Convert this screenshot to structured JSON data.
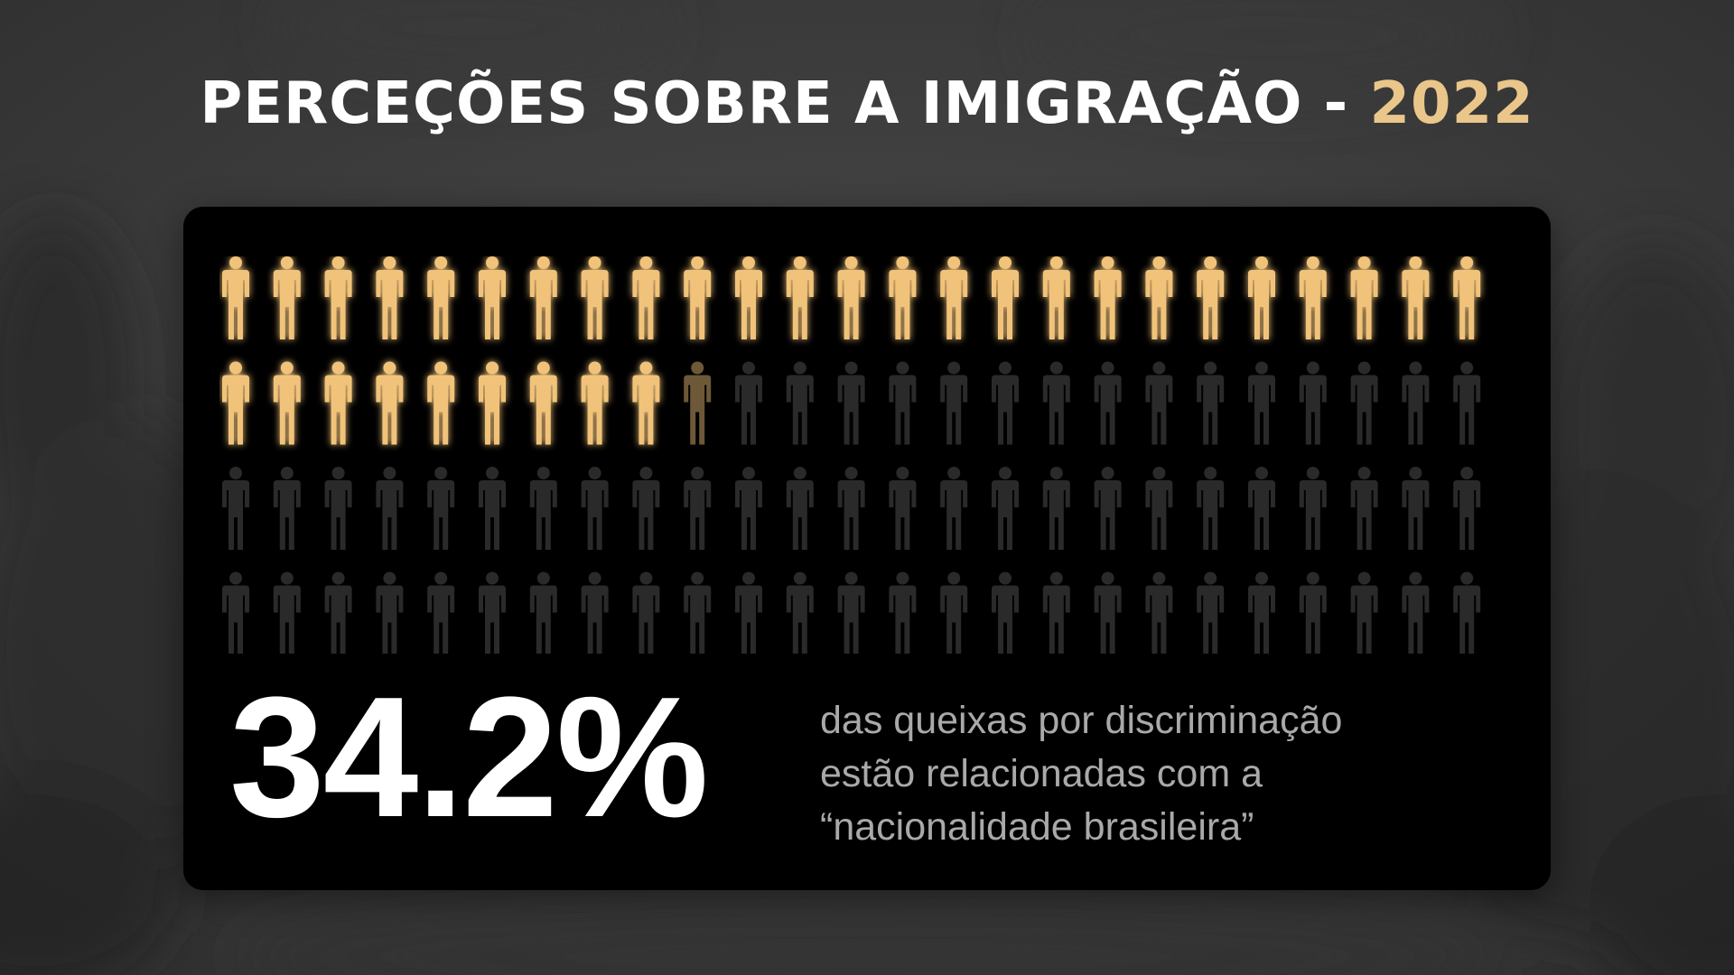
{
  "title": {
    "text": "PERCEÇÕES SOBRE A IMIGRAÇÃO - ",
    "year": "2022"
  },
  "pictogram": {
    "icon": "person-icon",
    "rows": 4,
    "columns": 25,
    "highlighted_count": 34,
    "partial_fill": 0.2,
    "highlight_color": "#F1C37A",
    "base_color": "#2A2A2A"
  },
  "stat": {
    "value": "34.2%"
  },
  "caption": {
    "line1": "das queixas por discriminação",
    "line2": "estão relacionadas com a",
    "line3": "“nacionalidade brasileira”"
  }
}
